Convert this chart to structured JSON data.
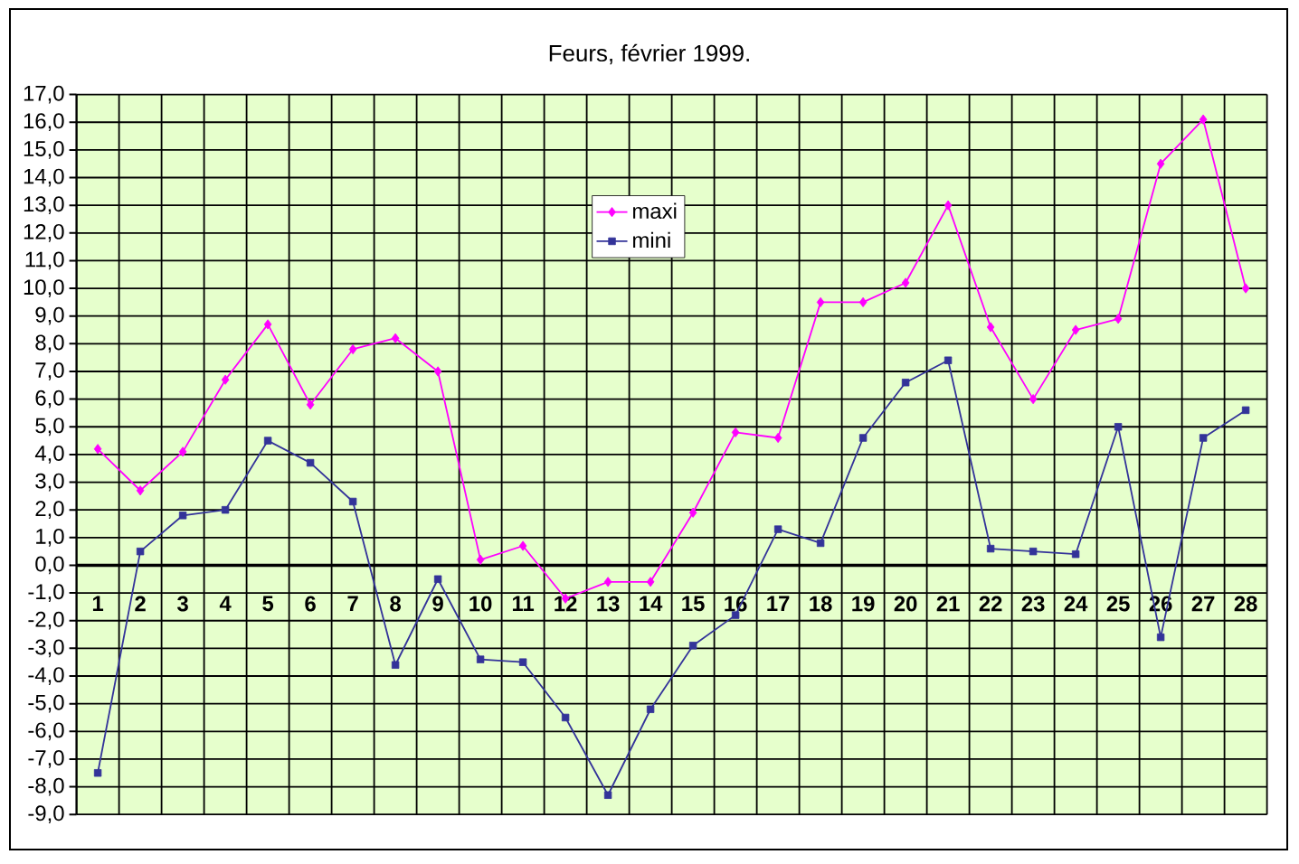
{
  "chart_data": {
    "type": "line",
    "title": "Feurs, février 1999.",
    "categories": [
      "1",
      "2",
      "3",
      "4",
      "5",
      "6",
      "7",
      "8",
      "9",
      "10",
      "11",
      "12",
      "13",
      "14",
      "15",
      "16",
      "17",
      "18",
      "19",
      "20",
      "21",
      "22",
      "23",
      "24",
      "25",
      "26",
      "27",
      "28"
    ],
    "series": [
      {
        "name": "maxi",
        "color": "#ff00ff",
        "marker": "diamond",
        "values": [
          4.2,
          2.7,
          4.1,
          6.7,
          8.7,
          5.8,
          7.8,
          8.2,
          7.0,
          0.2,
          0.7,
          -1.2,
          -0.6,
          -0.6,
          1.9,
          4.8,
          4.6,
          9.5,
          9.5,
          10.2,
          13.0,
          8.6,
          6.0,
          8.5,
          8.9,
          14.5,
          16.1,
          10.0
        ]
      },
      {
        "name": "mini",
        "color": "#333399",
        "marker": "square",
        "values": [
          -7.5,
          0.5,
          1.8,
          2.0,
          4.5,
          3.7,
          2.3,
          -3.6,
          -0.5,
          -3.4,
          -3.5,
          -5.5,
          -8.3,
          -5.2,
          -2.9,
          -1.8,
          1.3,
          0.8,
          4.6,
          6.6,
          7.4,
          0.6,
          0.5,
          0.4,
          5.0,
          -2.6,
          4.6,
          5.6
        ]
      }
    ],
    "ylim": [
      -9,
      17
    ],
    "yticks": [
      {
        "value": -9,
        "label": "-9,0"
      },
      {
        "value": -8,
        "label": "-8,0"
      },
      {
        "value": -7,
        "label": "-7,0"
      },
      {
        "value": -6,
        "label": "-6,0"
      },
      {
        "value": -5,
        "label": "-5,0"
      },
      {
        "value": -4,
        "label": "-4,0"
      },
      {
        "value": -3,
        "label": "-3,0"
      },
      {
        "value": -2,
        "label": "-2,0"
      },
      {
        "value": -1,
        "label": "-1,0"
      },
      {
        "value": 0,
        "label": "0,0"
      },
      {
        "value": 1,
        "label": "1,0"
      },
      {
        "value": 2,
        "label": "2,0"
      },
      {
        "value": 3,
        "label": "3,0"
      },
      {
        "value": 4,
        "label": "4,0"
      },
      {
        "value": 5,
        "label": "5,0"
      },
      {
        "value": 6,
        "label": "6,0"
      },
      {
        "value": 7,
        "label": "7,0"
      },
      {
        "value": 8,
        "label": "8,0"
      },
      {
        "value": 9,
        "label": "9,0"
      },
      {
        "value": 10,
        "label": "10,0"
      },
      {
        "value": 11,
        "label": "11,0"
      },
      {
        "value": 12,
        "label": "12,0"
      },
      {
        "value": 13,
        "label": "13,0"
      },
      {
        "value": 14,
        "label": "14,0"
      },
      {
        "value": 15,
        "label": "15,0"
      },
      {
        "value": 16,
        "label": "16,0"
      },
      {
        "value": 17,
        "label": "17,0"
      }
    ],
    "grid": true,
    "legend": "top",
    "line_style": "solid"
  }
}
